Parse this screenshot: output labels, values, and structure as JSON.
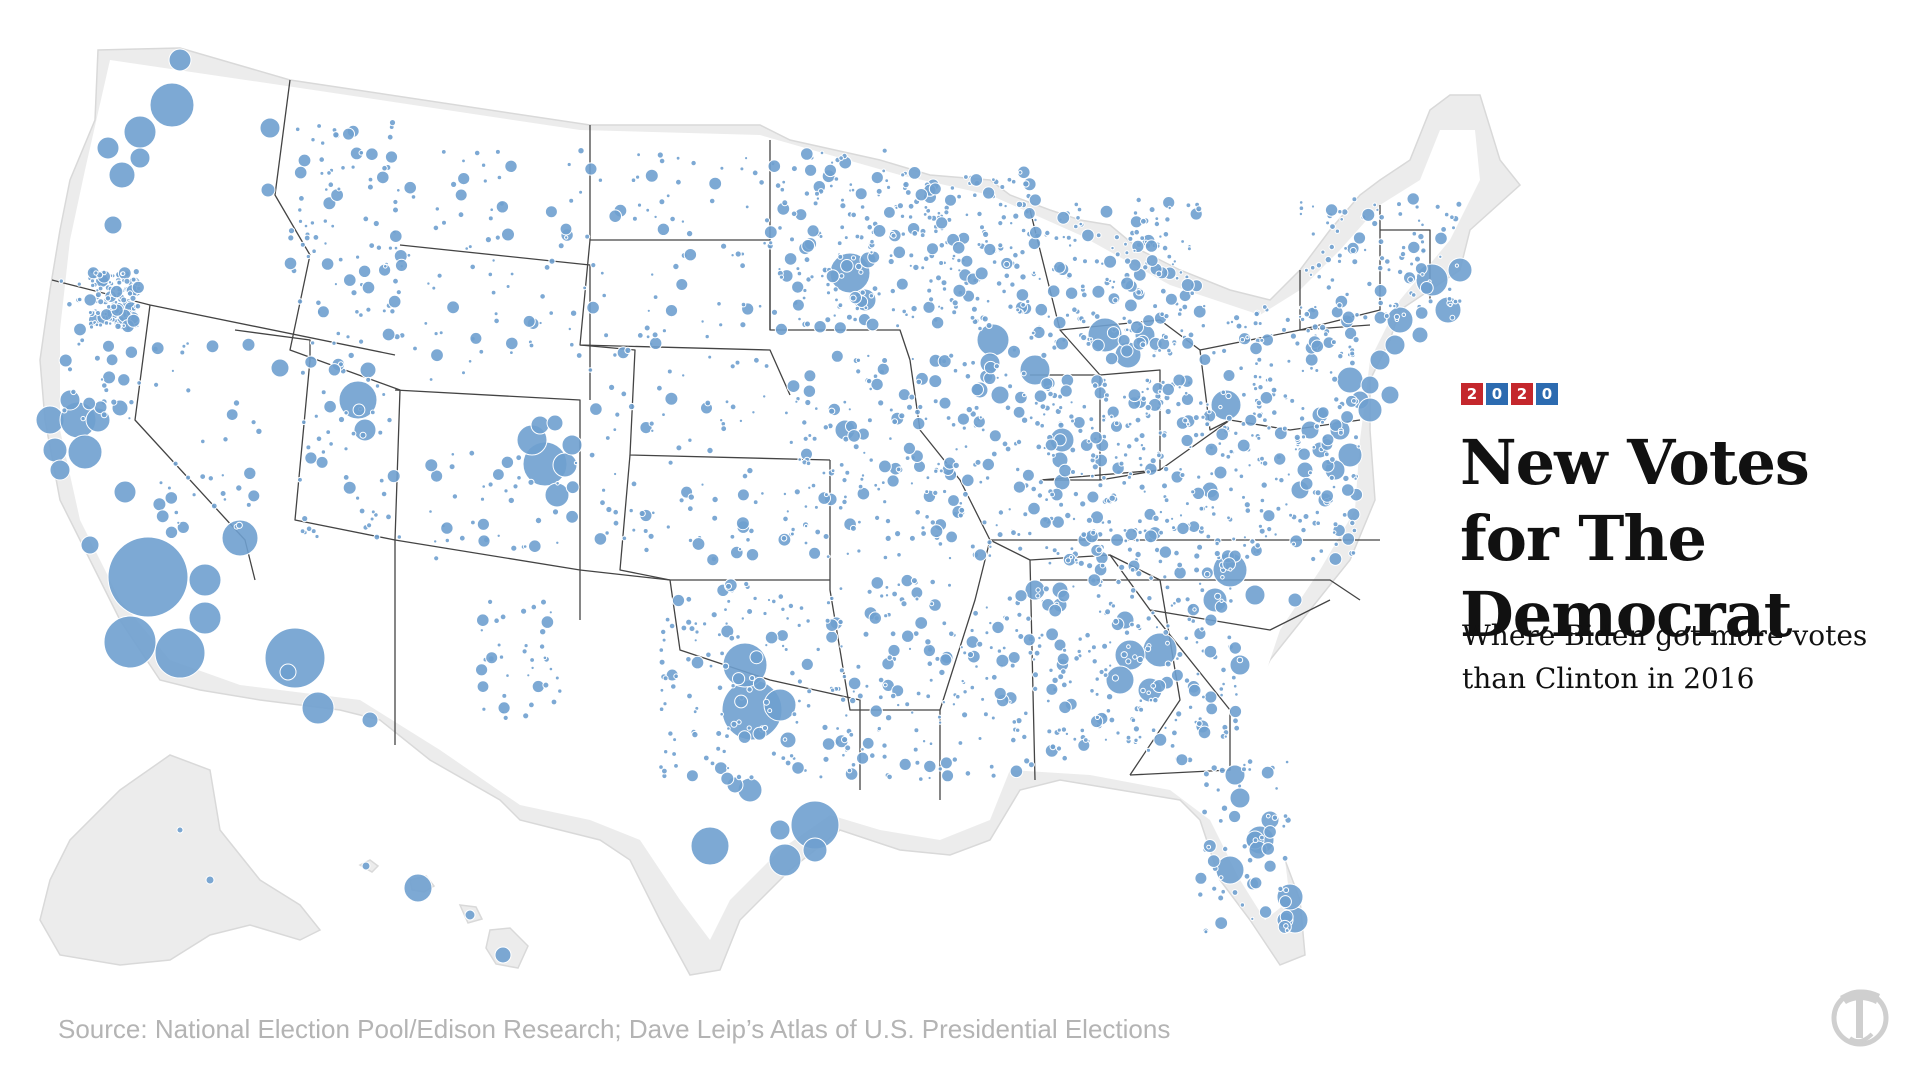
{
  "header": {
    "badge": [
      {
        "char": "2",
        "color": "#c4272c"
      },
      {
        "char": "0",
        "color": "#2c6bb0"
      },
      {
        "char": "2",
        "color": "#c4272c"
      },
      {
        "char": "0",
        "color": "#2c6bb0"
      }
    ],
    "title": "New Votes for The Democrat",
    "subtitle": "Where Biden got more votes than Clinton in 2016"
  },
  "footer": {
    "source": "Source: National Election Pool/Edison Research; Dave Leip’s Atlas of U.S. Presidential Elections"
  },
  "logo": {
    "icon": "nyt-logo-icon"
  },
  "map": {
    "bubble_color": "#6fa0cf",
    "land_color": "#ececec",
    "border_color": "#444444"
  }
}
